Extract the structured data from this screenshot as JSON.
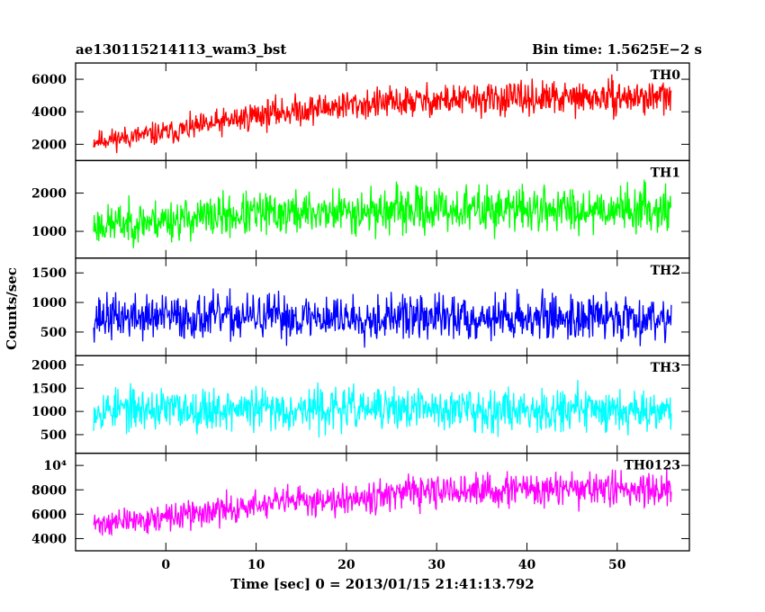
{
  "header": {
    "title": "ae130115214113_wam3_bst",
    "bin_time": "Bin time: 1.5625E−2 s"
  },
  "axes": {
    "xlabel": "Time [sec] 0 = 2013/01/15 21:41:13.792",
    "ylabel": "Counts/sec"
  },
  "chart_data": {
    "type": "line",
    "title": "ae130115214113_wam3_bst",
    "subtitle": "Bin time: 1.5625E−2 s",
    "xlabel": "Time [sec] 0 = 2013/01/15 21:41:13.792",
    "ylabel": "Counts/sec",
    "xlim": [
      -10,
      58
    ],
    "x_range_data": [
      -8,
      56
    ],
    "x_ticks": [
      0,
      10,
      20,
      30,
      40,
      50
    ],
    "x_tick_labels": [
      "0",
      "10",
      "20",
      "30",
      "40",
      "50"
    ],
    "grid": false,
    "panels": [
      {
        "name": "TH0",
        "color": "#ff0000",
        "ylim": [
          1000,
          7000
        ],
        "y_ticks": [
          2000,
          4000,
          6000
        ],
        "y_tick_labels": [
          "2000",
          "4000",
          "6000"
        ],
        "trend_x": [
          -8,
          0,
          5,
          10,
          20,
          30,
          40,
          56
        ],
        "trend_mean": [
          2200,
          2700,
          3200,
          3800,
          4400,
          4700,
          4800,
          4900
        ],
        "spread": [
          700,
          800,
          900,
          1000,
          1050,
          1100,
          1100,
          1100
        ],
        "seed": 11
      },
      {
        "name": "TH1",
        "color": "#00ff00",
        "ylim": [
          300,
          2850
        ],
        "y_ticks": [
          1000,
          2000
        ],
        "y_tick_labels": [
          "1000",
          "2000"
        ],
        "trend_x": [
          -8,
          0,
          10,
          20,
          30,
          40,
          56
        ],
        "trend_mean": [
          1150,
          1300,
          1450,
          1520,
          1560,
          1580,
          1600
        ],
        "spread": [
          550,
          600,
          620,
          640,
          650,
          650,
          650
        ],
        "seed": 23
      },
      {
        "name": "TH2",
        "color": "#0000ff",
        "ylim": [
          100,
          1750
        ],
        "y_ticks": [
          500,
          1000,
          1500
        ],
        "y_tick_labels": [
          "500",
          "1000",
          "1500"
        ],
        "trend_x": [
          -8,
          56
        ],
        "trend_mean": [
          750,
          750
        ],
        "spread": [
          420,
          420
        ],
        "seed": 37
      },
      {
        "name": "TH3",
        "color": "#00ffff",
        "ylim": [
          100,
          2200
        ],
        "y_ticks": [
          500,
          1000,
          1500,
          2000
        ],
        "y_tick_labels": [
          "500",
          "1000",
          "1500",
          "2000"
        ],
        "trend_x": [
          -8,
          56
        ],
        "trend_mean": [
          1050,
          1050
        ],
        "spread": [
          500,
          500
        ],
        "seed": 53
      },
      {
        "name": "TH0123",
        "color": "#ff00ff",
        "ylim": [
          3000,
          11000
        ],
        "y_ticks": [
          4000,
          6000,
          8000,
          10000
        ],
        "y_tick_labels": [
          "4000",
          "6000",
          "8000",
          "10⁴"
        ],
        "trend_x": [
          -8,
          0,
          10,
          20,
          30,
          40,
          56
        ],
        "trend_mean": [
          5200,
          5700,
          6700,
          7400,
          7800,
          8000,
          8100
        ],
        "spread": [
          1100,
          1200,
          1350,
          1450,
          1500,
          1500,
          1500
        ],
        "seed": 71
      }
    ]
  }
}
